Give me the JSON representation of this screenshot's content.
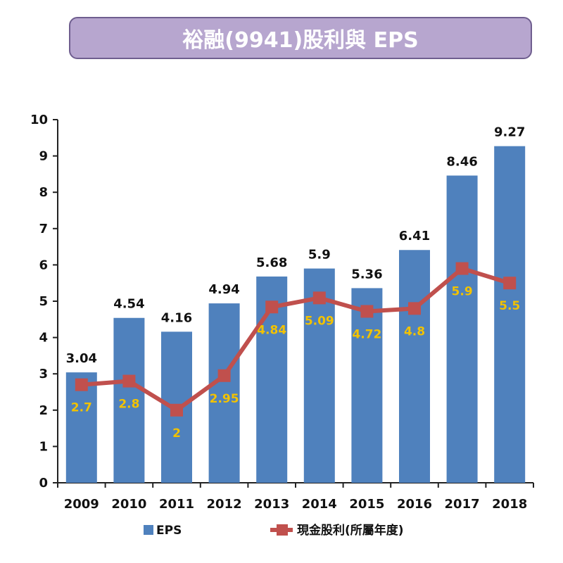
{
  "chart_data": {
    "type": "bar",
    "title": "裕融(9941)股利與 EPS",
    "categories": [
      "2009",
      "2010",
      "2011",
      "2012",
      "2013",
      "2014",
      "2015",
      "2016",
      "2017",
      "2018"
    ],
    "series": [
      {
        "name": "EPS",
        "type": "bar",
        "color": "#4f81bd",
        "values": [
          3.04,
          4.54,
          4.16,
          4.94,
          5.68,
          5.9,
          5.36,
          6.41,
          8.46,
          9.27
        ],
        "labels": [
          "3.04",
          "4.54",
          "4.16",
          "4.94",
          "5.68",
          "5.9",
          "5.36",
          "6.41",
          "8.46",
          "9.27"
        ]
      },
      {
        "name": "現金股利(所屬年度)",
        "type": "line",
        "color": "#c0504d",
        "values": [
          2.7,
          2.8,
          2,
          2.95,
          4.84,
          5.09,
          4.72,
          4.8,
          5.9,
          5.5
        ],
        "labels": [
          "2.7",
          "2.8",
          "2",
          "2.95",
          "4.84",
          "5.09",
          "4.72",
          "4.8",
          "5.9",
          "5.5"
        ]
      }
    ],
    "ylim": [
      0,
      10
    ],
    "yticks": [
      "0",
      "1",
      "2",
      "3",
      "4",
      "5",
      "6",
      "7",
      "8",
      "9",
      "10"
    ],
    "xlabel": "",
    "ylabel": "",
    "grid": false,
    "legend_position": "bottom",
    "label_color": "#f2c200"
  }
}
